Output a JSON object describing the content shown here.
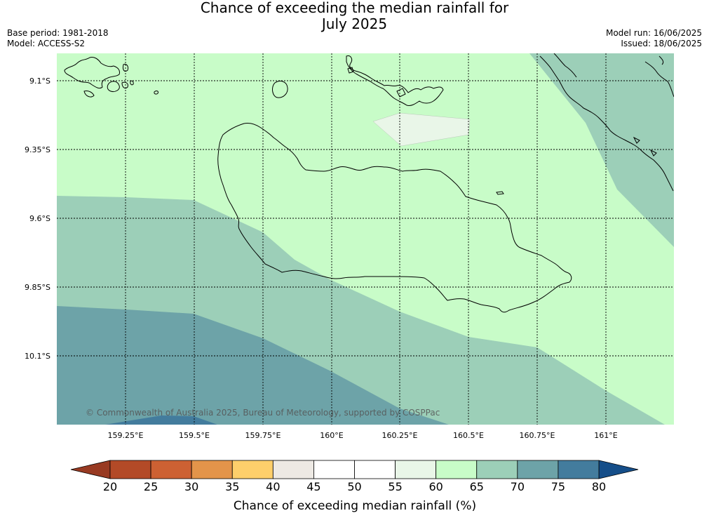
{
  "title": {
    "line1": "Chance of exceeding the median rainfall for",
    "line2": "July 2025"
  },
  "meta": {
    "base_period": "Base period: 1981-2018",
    "model": "Model: ACCESS-S2",
    "model_run": "Model run: 16/06/2025",
    "issued": "Issued: 18/06/2025"
  },
  "map": {
    "lat_labels": [
      "9.1°S",
      "9.35°S",
      "9.6°S",
      "9.85°S",
      "10.1°S"
    ],
    "lon_labels": [
      "159.25°E",
      "159.5°E",
      "159.75°E",
      "160°E",
      "160.25°E",
      "160.5°E",
      "160.75°E",
      "161°E"
    ],
    "copyright": "© Commonwealth of Australia 2025, Bureau of Meteorology, supported by COSPPac",
    "gridlines": true
  },
  "colorbar": {
    "label": "Chance of exceeding median rainfall (%)",
    "ticks": [
      "20",
      "25",
      "30",
      "35",
      "40",
      "45",
      "50",
      "55",
      "60",
      "65",
      "70",
      "75",
      "80"
    ],
    "colors": [
      "#b34a27",
      "#cd6133",
      "#e3944a",
      "#fecf6b",
      "#ede9e4",
      "#ffffff",
      "#ffffff",
      "#e9f6e8",
      "#c8fcc8",
      "#9ccfb8",
      "#6da3a8",
      "#437c9d"
    ],
    "under_color": "#983a22",
    "over_color": "#154e89"
  },
  "colors": {
    "band_55_60": "#e9f6e8",
    "band_60_65": "#c8fcc8",
    "band_65_70": "#9ccfb8",
    "band_70_75": "#6da3a8",
    "band_75_80": "#437c9d"
  }
}
